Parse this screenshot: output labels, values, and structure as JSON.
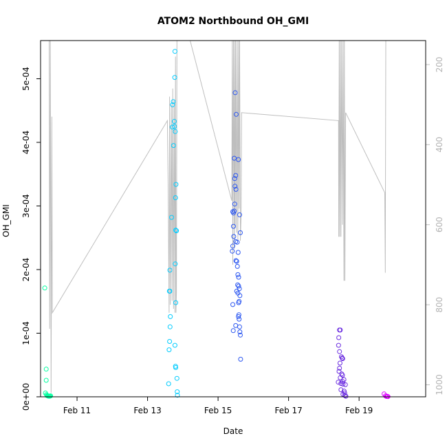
{
  "chart_data": {
    "type": "scatter",
    "title": "ATOM2 Northbound OH_GMI",
    "xlabel": "Date",
    "ylabel": "OH_GMI",
    "x_axis": {
      "unit": "date",
      "range": [
        "2016-02-09T23:10",
        "2016-02-20T21:20"
      ],
      "ticks": [
        {
          "value": "2016-02-11",
          "label": "Feb 11"
        },
        {
          "value": "2016-02-13",
          "label": "Feb 13"
        },
        {
          "value": "2016-02-15",
          "label": "Feb 15"
        },
        {
          "value": "2016-02-17",
          "label": "Feb 17"
        },
        {
          "value": "2016-02-19",
          "label": "Feb 19"
        }
      ]
    },
    "y_axis": {
      "range": [
        0,
        0.00056
      ],
      "ticks": [
        {
          "value": 0,
          "label": "0e+00"
        },
        {
          "value": 0.0001,
          "label": "1e-04"
        },
        {
          "value": 0.0002,
          "label": "2e-04"
        },
        {
          "value": 0.0003,
          "label": "3e-04"
        },
        {
          "value": 0.0004,
          "label": "4e-04"
        },
        {
          "value": 0.0005,
          "label": "5e-04"
        }
      ]
    },
    "y2_axis": {
      "description": "pressure, reversed",
      "range": [
        1030,
        140
      ],
      "color": "#bebebe",
      "ticks": [
        {
          "value": 200,
          "label": "200"
        },
        {
          "value": 400,
          "label": "400"
        },
        {
          "value": 600,
          "label": "600"
        },
        {
          "value": 800,
          "label": "800"
        },
        {
          "value": 1000,
          "label": "1000"
        }
      ]
    },
    "grid": false,
    "legend": "none",
    "series": [
      {
        "color": "#00FFA0",
        "points": [
          [
            "2016-02-10T02:00",
            0.000171
          ],
          [
            "2016-02-10T03:00",
            4.35e-05
          ],
          [
            "2016-02-10T03:00",
            2.6e-05
          ],
          [
            "2016-02-10T02:30",
            6e-06
          ],
          [
            "2016-02-10T03:10",
            3.5e-06
          ],
          [
            "2016-02-10T03:30",
            2e-06
          ],
          [
            "2016-02-10T04:00",
            1.5e-06
          ],
          [
            "2016-02-10T04:30",
            1e-06
          ],
          [
            "2016-02-10T05:00",
            1e-06
          ],
          [
            "2016-02-10T05:30",
            1e-06
          ],
          [
            "2016-02-10T06:00",
            1.5e-06
          ]
        ]
      },
      {
        "color": "#00CCFF",
        "points": [
          [
            "2016-02-13T14:20",
            2.05e-05
          ],
          [
            "2016-02-13T14:40",
            7.4e-05
          ],
          [
            "2016-02-13T15:00",
            8.7e-05
          ],
          [
            "2016-02-13T15:20",
            0.00011
          ],
          [
            "2016-02-13T15:30",
            0.000126
          ],
          [
            "2016-02-13T14:50",
            0.000166
          ],
          [
            "2016-02-13T15:10",
            0.000166
          ],
          [
            "2016-02-13T15:10",
            0.000199
          ],
          [
            "2016-02-13T16:20",
            0.000282
          ],
          [
            "2016-02-13T16:50",
            0.000424
          ],
          [
            "2016-02-13T17:00",
            0.000459
          ],
          [
            "2016-02-13T17:30",
            0.000464
          ],
          [
            "2016-02-13T17:40",
            0.000395
          ],
          [
            "2016-02-13T18:10",
            0.000433
          ],
          [
            "2016-02-13T18:20",
            0.000425
          ],
          [
            "2016-02-13T18:50",
            0.000417
          ],
          [
            "2016-02-13T18:30",
            0.000502
          ],
          [
            "2016-02-13T18:40",
            0.000543
          ],
          [
            "2016-02-13T19:00",
            0.000313
          ],
          [
            "2016-02-13T19:20",
            0.000334
          ],
          [
            "2016-02-13T19:10",
            0.000262
          ],
          [
            "2016-02-13T19:40",
            0.000261
          ],
          [
            "2016-02-13T18:50",
            0.000209
          ],
          [
            "2016-02-13T19:10",
            0.000148
          ],
          [
            "2016-02-13T18:40",
            8.1e-05
          ],
          [
            "2016-02-13T19:00",
            4.8e-05
          ],
          [
            "2016-02-13T19:10",
            4.6e-05
          ],
          [
            "2016-02-13T20:00",
            2.9e-05
          ],
          [
            "2016-02-13T20:10",
            8e-06
          ],
          [
            "2016-02-13T20:20",
            2.5e-06
          ]
        ]
      },
      {
        "color": "#2A55F0",
        "points": [
          [
            "2016-02-15T09:40",
            0.000229
          ],
          [
            "2016-02-15T10:00",
            0.000237
          ],
          [
            "2016-02-15T10:30",
            0.000268
          ],
          [
            "2016-02-15T10:00",
            0.000291
          ],
          [
            "2016-02-15T10:30",
            0.000289
          ],
          [
            "2016-02-15T11:00",
            0.000292
          ],
          [
            "2016-02-15T11:20",
            0.000303
          ],
          [
            "2016-02-15T10:40",
            0.000252
          ],
          [
            "2016-02-15T11:30",
            0.000331
          ],
          [
            "2016-02-15T12:10",
            0.000326
          ],
          [
            "2016-02-15T11:20",
            0.000343
          ],
          [
            "2016-02-15T12:00",
            0.000348
          ],
          [
            "2016-02-15T11:00",
            0.000375
          ],
          [
            "2016-02-15T12:20",
            0.000444
          ],
          [
            "2016-02-15T11:40",
            0.000478
          ],
          [
            "2016-02-15T13:50",
            0.000373
          ],
          [
            "2016-02-15T14:40",
            0.000286
          ],
          [
            "2016-02-15T15:10",
            0.000258
          ],
          [
            "2016-02-15T12:00",
            0.000244
          ],
          [
            "2016-02-15T13:00",
            0.000243
          ],
          [
            "2016-02-15T13:40",
            0.000227
          ],
          [
            "2016-02-15T12:10",
            0.000214
          ],
          [
            "2016-02-15T12:40",
            0.000213
          ],
          [
            "2016-02-15T13:10",
            0.000205
          ],
          [
            "2016-02-15T13:30",
            0.000192
          ],
          [
            "2016-02-15T14:00",
            0.000188
          ],
          [
            "2016-02-15T13:20",
            0.000176
          ],
          [
            "2016-02-15T14:00",
            0.000174
          ],
          [
            "2016-02-15T14:30",
            0.00017
          ],
          [
            "2016-02-15T12:40",
            0.000166
          ],
          [
            "2016-02-15T13:30",
            0.000163
          ],
          [
            "2016-02-15T14:50",
            0.000159
          ],
          [
            "2016-02-15T14:20",
            0.00015
          ],
          [
            "2016-02-15T14:00",
            0.000148
          ],
          [
            "2016-02-15T10:00",
            0.000145
          ],
          [
            "2016-02-15T14:10",
            0.000129
          ],
          [
            "2016-02-15T13:50",
            0.000126
          ],
          [
            "2016-02-15T14:20",
            0.000122
          ],
          [
            "2016-02-15T12:00",
            0.000112
          ],
          [
            "2016-02-15T14:40",
            0.00011
          ],
          [
            "2016-02-15T10:20",
            0.000104
          ],
          [
            "2016-02-15T14:50",
            0.000102
          ],
          [
            "2016-02-15T15:10",
            9.7e-05
          ],
          [
            "2016-02-15T15:20",
            5.9e-05
          ]
        ]
      },
      {
        "color": "#6A2BE0",
        "points": [
          [
            "2016-02-18T10:40",
            0.000105
          ],
          [
            "2016-02-18T11:10",
            0.000105
          ],
          [
            "2016-02-18T10:10",
            9.3e-05
          ],
          [
            "2016-02-18T10:00",
            8.1e-05
          ],
          [
            "2016-02-18T10:40",
            7.1e-05
          ],
          [
            "2016-02-18T12:00",
            6.3e-05
          ],
          [
            "2016-02-18T12:30",
            6.1e-05
          ],
          [
            "2016-02-18T12:50",
            6e-05
          ],
          [
            "2016-02-18T11:00",
            5.3e-05
          ],
          [
            "2016-02-18T10:40",
            4.5e-05
          ],
          [
            "2016-02-18T10:20",
            4e-05
          ],
          [
            "2016-02-18T12:10",
            3.6e-05
          ],
          [
            "2016-02-18T12:40",
            3.4e-05
          ],
          [
            "2016-02-18T11:10",
            3e-05
          ],
          [
            "2016-02-18T13:40",
            2.7e-05
          ],
          [
            "2016-02-18T12:50",
            2.4e-05
          ],
          [
            "2016-02-18T09:50",
            2.3e-05
          ],
          [
            "2016-02-18T11:40",
            2.1e-05
          ],
          [
            "2016-02-18T13:00",
            2e-05
          ],
          [
            "2016-02-18T14:40",
            1.9e-05
          ],
          [
            "2016-02-18T11:40",
            1.1e-05
          ],
          [
            "2016-02-18T13:50",
            9e-06
          ],
          [
            "2016-02-18T14:10",
            6e-06
          ],
          [
            "2016-02-18T13:00",
            4e-06
          ],
          [
            "2016-02-18T14:20",
            2e-06
          ],
          [
            "2016-02-18T15:00",
            1e-06
          ]
        ]
      },
      {
        "color": "#DD00FF",
        "points": [
          [
            "2016-02-19T17:00",
            4.5e-06
          ],
          [
            "2016-02-19T18:00",
            1.5e-06
          ],
          [
            "2016-02-19T18:40",
            5e-07
          ],
          [
            "2016-02-19T19:10",
            8e-07
          ],
          [
            "2016-02-19T19:40",
            3e-07
          ]
        ]
      }
    ],
    "pressure_trace": {
      "color": "#bebebe",
      "axis": "right",
      "points": [
        [
          "2016-02-10T05:00",
          140
        ],
        [
          "2016-02-10T05:20",
          860
        ],
        [
          "2016-02-10T05:50",
          140
        ],
        [
          "2016-02-10T06:20",
          1020
        ],
        [
          "2016-02-10T06:50",
          330
        ],
        [
          "2016-02-10T07:10",
          820
        ],
        [
          "2016-02-13T13:30",
          340
        ],
        [
          "2016-02-13T14:00",
          500
        ],
        [
          "2016-02-13T14:40",
          820
        ],
        [
          "2016-02-13T15:00",
          280
        ],
        [
          "2016-02-13T15:30",
          800
        ],
        [
          "2016-02-13T16:10",
          300
        ],
        [
          "2016-02-13T16:40",
          790
        ],
        [
          "2016-02-13T17:10",
          260
        ],
        [
          "2016-02-13T17:40",
          810
        ],
        [
          "2016-02-13T18:10",
          290
        ],
        [
          "2016-02-13T18:40",
          820
        ],
        [
          "2016-02-13T19:00",
          180
        ],
        [
          "2016-02-13T19:20",
          820
        ],
        [
          "2016-02-13T19:40",
          770
        ],
        [
          "2016-02-13T20:00",
          140
        ],
        [
          "2016-02-14T05:00",
          140
        ],
        [
          "2016-02-15T09:20",
          540
        ],
        [
          "2016-02-15T09:40",
          140
        ],
        [
          "2016-02-15T10:00",
          700
        ],
        [
          "2016-02-15T10:30",
          140
        ],
        [
          "2016-02-15T11:00",
          660
        ],
        [
          "2016-02-15T11:20",
          140
        ],
        [
          "2016-02-15T11:40",
          600
        ],
        [
          "2016-02-15T12:00",
          140
        ],
        [
          "2016-02-15T12:30",
          620
        ],
        [
          "2016-02-15T13:00",
          140
        ],
        [
          "2016-02-15T13:30",
          640
        ],
        [
          "2016-02-15T14:00",
          140
        ],
        [
          "2016-02-15T14:20",
          560
        ],
        [
          "2016-02-15T14:40",
          140
        ],
        [
          "2016-02-15T15:10",
          640
        ],
        [
          "2016-02-15T15:40",
          580
        ],
        [
          "2016-02-15T16:00",
          320
        ],
        [
          "2016-02-18T10:00",
          340
        ],
        [
          "2016-02-18T10:10",
          630
        ],
        [
          "2016-02-18T10:30",
          140
        ],
        [
          "2016-02-18T10:50",
          630
        ],
        [
          "2016-02-18T11:20",
          140
        ],
        [
          "2016-02-18T11:40",
          630
        ],
        [
          "2016-02-18T12:10",
          140
        ],
        [
          "2016-02-18T12:40",
          600
        ],
        [
          "2016-02-18T13:10",
          140
        ],
        [
          "2016-02-18T13:40",
          740
        ],
        [
          "2016-02-18T14:00",
          140
        ],
        [
          "2016-02-18T14:20",
          740
        ],
        [
          "2016-02-18T14:50",
          320
        ],
        [
          "2016-02-19T17:30",
          520
        ],
        [
          "2016-02-19T17:50",
          720
        ],
        [
          "2016-02-19T18:10",
          140
        ]
      ]
    }
  }
}
